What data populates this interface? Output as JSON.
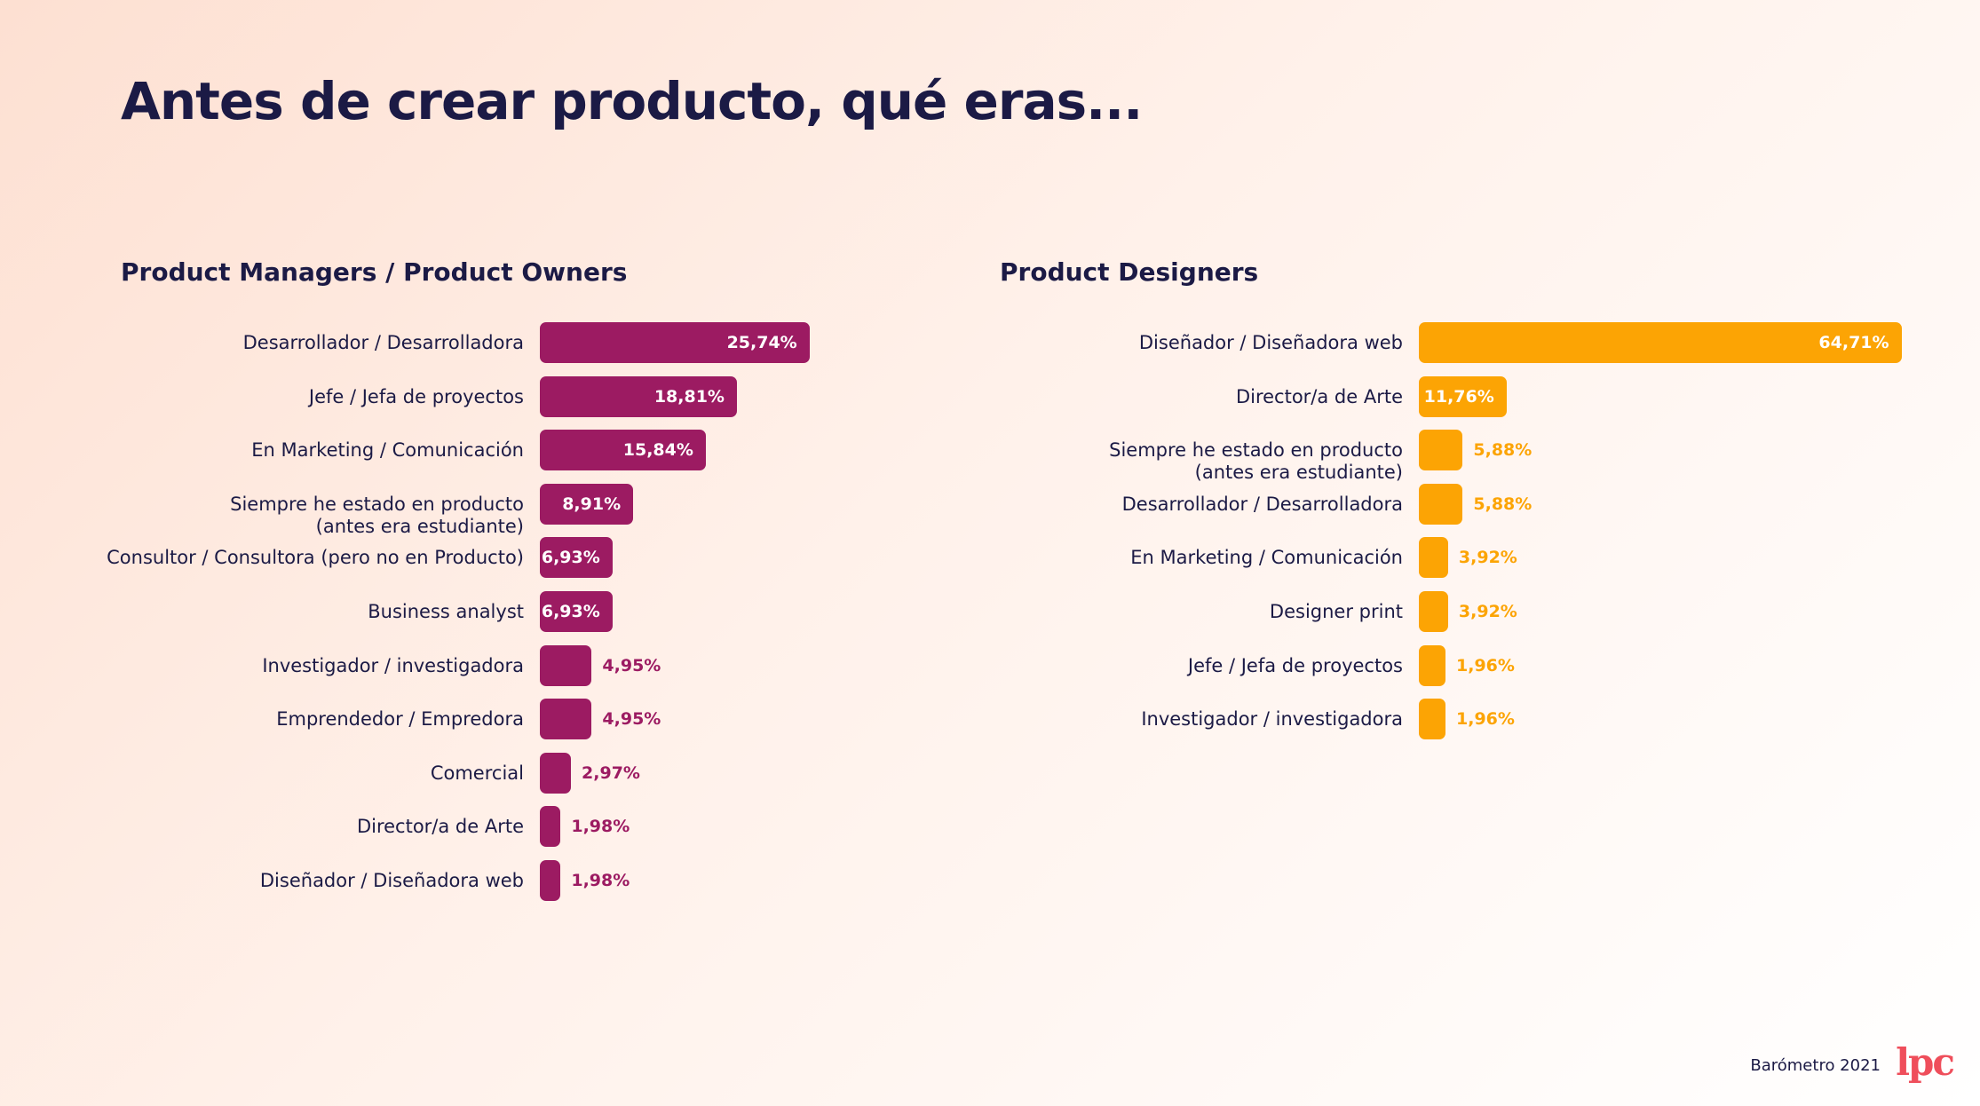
{
  "title": "Antes de crear producto, qué eras...",
  "footer": {
    "text": "Barómetro 2021",
    "logo": "lpc"
  },
  "colors": {
    "left": "#9c1b62",
    "right": "#fca404",
    "text": "#1b1a45"
  },
  "chart_data": [
    {
      "type": "bar",
      "orientation": "horizontal",
      "title": "Product Managers / Product Owners",
      "categories": [
        "Desarrollador / Desarrolladora",
        "Jefe / Jefa de proyectos",
        "En Marketing / Comunicación",
        "Siempre he estado en producto\n(antes era estudiante)",
        "Consultor / Consultora (pero no en Producto)",
        "Business analyst",
        "Investigador / investigadora",
        "Emprendedor / Empredora",
        "Comercial",
        "Director/a de Arte",
        "Diseñador / Diseñadora web"
      ],
      "values": [
        25.74,
        18.81,
        15.84,
        8.91,
        6.93,
        6.93,
        4.95,
        4.95,
        2.97,
        1.98,
        1.98
      ],
      "value_labels": [
        "25,74%",
        "18,81%",
        "15,84%",
        "8,91%",
        "6,93%",
        "6,93%",
        "4,95%",
        "4,95%",
        "2,97%",
        "1,98%",
        "1,98%"
      ]
    },
    {
      "type": "bar",
      "orientation": "horizontal",
      "title": "Product Designers",
      "categories": [
        "Diseñador / Diseñadora web",
        "Director/a de Arte",
        "Siempre he estado en producto\n(antes era estudiante)",
        "Desarrollador / Desarrolladora",
        "En Marketing / Comunicación",
        "Designer print",
        "Jefe / Jefa de proyectos",
        "Investigador / investigadora"
      ],
      "values": [
        64.71,
        11.76,
        5.88,
        5.88,
        3.92,
        3.92,
        1.96,
        1.96
      ],
      "value_labels": [
        "64,71%",
        "11,76%",
        "5,88%",
        "5,88%",
        "3,92%",
        "3,92%",
        "1,96%",
        "1,96%"
      ]
    }
  ]
}
